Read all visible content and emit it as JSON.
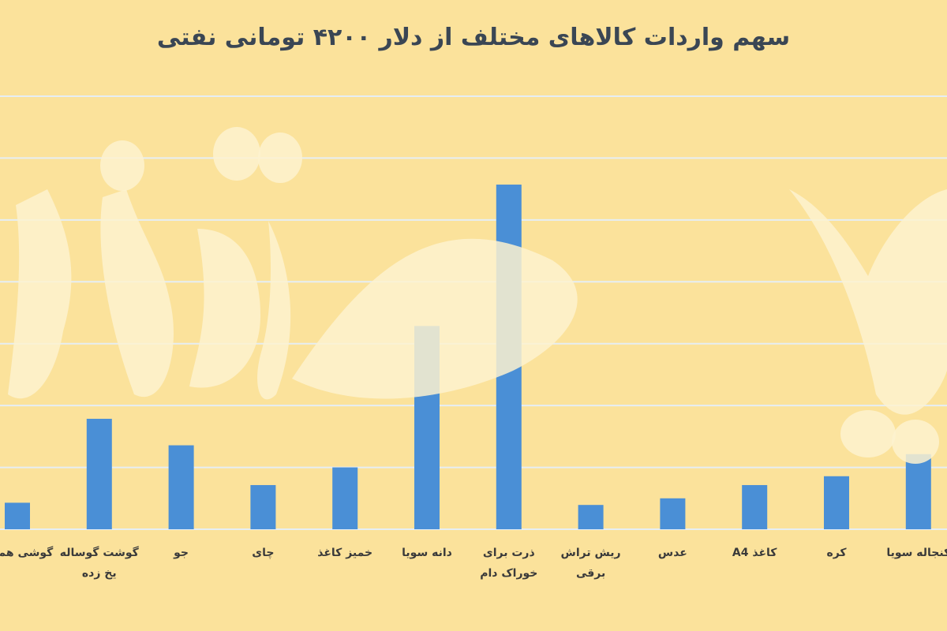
{
  "chart_data": {
    "type": "bar",
    "title": "سهم واردات کالاهای مختلف از دلار ۴۲۰۰ تومانی نفتی",
    "xlabel": "",
    "ylabel": "",
    "grid": true,
    "categories": [
      "گوشی همراه",
      "گوشت گوساله یخ زده",
      "جو",
      "چای",
      "خمیز کاغذ",
      "دانه سویا",
      "ذرت برای خوراک دام",
      "ریش تراش برقی",
      "عدس",
      "کاغذ A4",
      "کره",
      "کنجاله سویا"
    ],
    "values": [
      0.6,
      2.5,
      1.9,
      1.0,
      1.4,
      4.6,
      7.8,
      0.55,
      0.7,
      1.0,
      1.2,
      1.7
    ],
    "ylim": [
      0,
      9.8
    ],
    "colors": {
      "bar": "#4a8fd6",
      "grid": "#e6eef4",
      "background": "#fbe29b"
    },
    "watermark": "دنیای اقتصاد"
  }
}
